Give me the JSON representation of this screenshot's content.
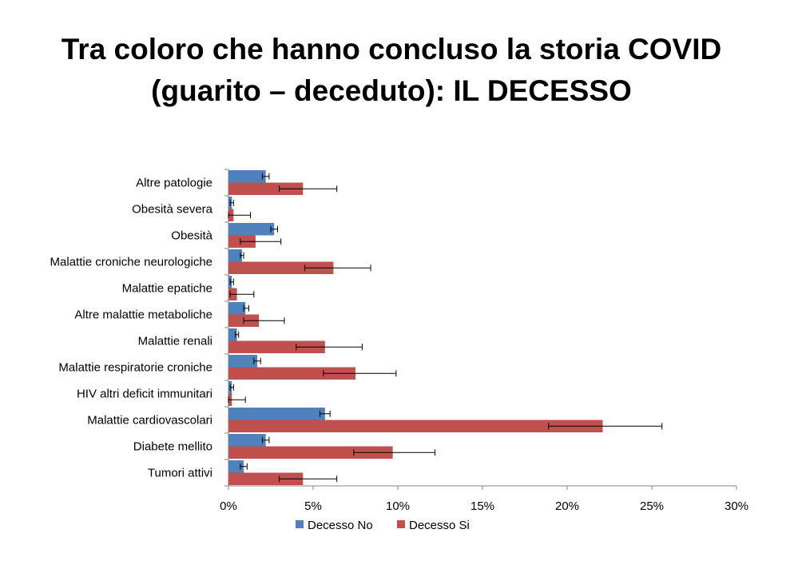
{
  "slide": {
    "title_line1": "Tra coloro che hanno concluso la storia COVID",
    "title_line2": "(guarito – deceduto): IL DECESSO"
  },
  "chart_data": {
    "type": "bar",
    "orientation": "horizontal",
    "categories": [
      "Altre patologie",
      "Obesità severa",
      "Obesità",
      "Malattie croniche neurologiche",
      "Malattie epatiche",
      "Altre malattie metaboliche",
      "Malattie renali",
      "Malattie respiratorie croniche",
      "HIV altri deficit immunitari",
      "Malattie cardiovascolari",
      "Diabete mellito",
      "Tumori attivi"
    ],
    "series": [
      {
        "name": "Decesso No",
        "color": "#4f81bd",
        "values": [
          2.2,
          0.2,
          2.7,
          0.8,
          0.2,
          1.0,
          0.5,
          1.7,
          0.2,
          5.7,
          2.2,
          0.9
        ],
        "error_low": [
          2.0,
          0.1,
          2.5,
          0.7,
          0.1,
          0.9,
          0.4,
          1.5,
          0.1,
          5.4,
          2.0,
          0.7
        ],
        "error_high": [
          2.4,
          0.3,
          2.9,
          0.9,
          0.3,
          1.2,
          0.6,
          1.9,
          0.3,
          6.0,
          2.4,
          1.1
        ]
      },
      {
        "name": "Decesso Si",
        "color": "#c0504d",
        "values": [
          4.4,
          0.3,
          1.6,
          6.2,
          0.5,
          1.8,
          5.7,
          7.5,
          0.2,
          22.1,
          9.7,
          4.4
        ],
        "error_low": [
          3.0,
          0.0,
          0.7,
          4.5,
          0.1,
          0.9,
          4.0,
          5.6,
          0.0,
          18.9,
          7.4,
          3.0
        ],
        "error_high": [
          6.4,
          1.3,
          3.1,
          8.4,
          1.5,
          3.3,
          7.9,
          9.9,
          1.0,
          25.6,
          12.2,
          6.4
        ]
      }
    ],
    "xlim": [
      0,
      30
    ],
    "xticks": [
      0,
      5,
      10,
      15,
      20,
      25,
      30
    ],
    "xtick_labels": [
      "0%",
      "5%",
      "10%",
      "15%",
      "20%",
      "25%",
      "30%"
    ],
    "xlabel": "",
    "ylabel": "",
    "grid": false,
    "legend_position": "bottom",
    "error_bars": true
  }
}
